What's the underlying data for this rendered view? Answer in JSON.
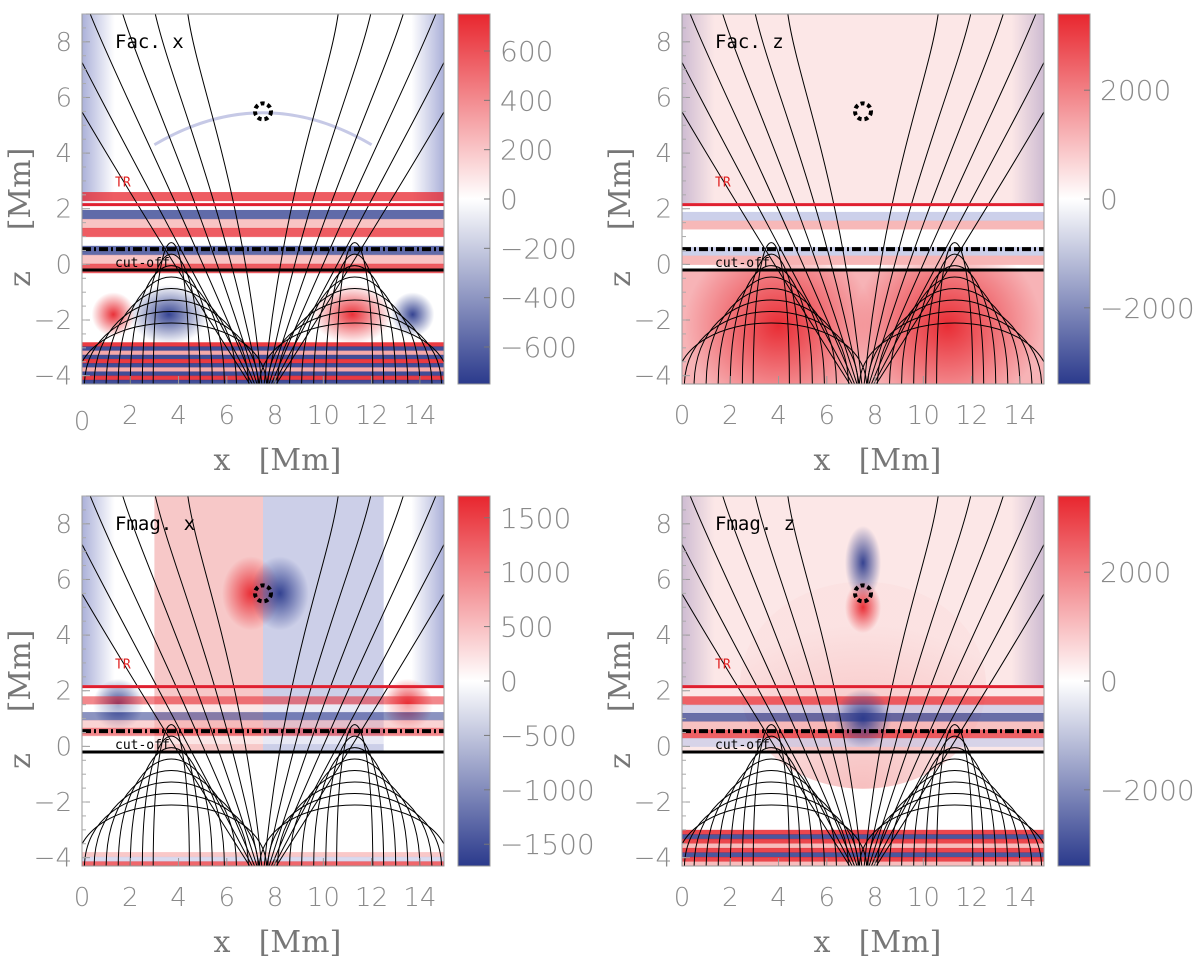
{
  "colors": {
    "red": "#e8262e",
    "blue": "#2b3a8c",
    "white": "#ffffff"
  },
  "annotations": {
    "tr_label": "TR",
    "cutoff_label": "cut-off"
  },
  "chart_data": [
    {
      "type": "heatmap",
      "title": "Fac. x",
      "xlabel": "x [Mm]",
      "ylabel": "z [Mm]",
      "xlim": [
        0,
        15
      ],
      "ylim": [
        -4.3,
        9
      ],
      "xticks": [
        "0",
        "2",
        "4",
        "6",
        "8",
        "10",
        "12",
        "14"
      ],
      "yticks": [
        "−4",
        "−2",
        "0",
        "2",
        "4",
        "6",
        "8"
      ],
      "colorbar": {
        "range": [
          -750,
          750
        ],
        "ticks": [
          "600",
          "400",
          "200",
          "0",
          "−200",
          "−400",
          "−600"
        ]
      },
      "tr_height": 2.15,
      "cutoff_height": -0.2,
      "dashed_height": 0.55,
      "marker": [
        7.5,
        5.5
      ]
    },
    {
      "type": "heatmap",
      "title": "Fac. z",
      "xlabel": "x [Mm]",
      "ylabel": "z [Mm]",
      "xlim": [
        0,
        15
      ],
      "ylim": [
        -4.3,
        9
      ],
      "xticks": [
        "0",
        "2",
        "4",
        "6",
        "8",
        "10",
        "12",
        "14"
      ],
      "yticks": [
        "−4",
        "−2",
        "0",
        "2",
        "4",
        "6",
        "8"
      ],
      "colorbar": {
        "range": [
          -3400,
          3400
        ],
        "ticks": [
          "2000",
          "0",
          "−2000"
        ]
      },
      "tr_height": 2.15,
      "cutoff_height": -0.2,
      "dashed_height": 0.55,
      "marker": [
        7.5,
        5.5
      ]
    },
    {
      "type": "heatmap",
      "title": "Fmag. x",
      "xlabel": "x [Mm]",
      "ylabel": "z [Mm]",
      "xlim": [
        0,
        15
      ],
      "ylim": [
        -4.3,
        9
      ],
      "xticks": [
        "0",
        "2",
        "4",
        "6",
        "8",
        "10",
        "12",
        "14"
      ],
      "yticks": [
        "−4",
        "−2",
        "0",
        "2",
        "4",
        "6",
        "8"
      ],
      "colorbar": {
        "range": [
          -1700,
          1700
        ],
        "ticks": [
          "1500",
          "1000",
          "500",
          "0",
          "−500",
          "−1000",
          "−1500"
        ]
      },
      "tr_height": 2.15,
      "cutoff_height": -0.2,
      "dashed_height": 0.55,
      "marker": [
        7.5,
        5.5
      ]
    },
    {
      "type": "heatmap",
      "title": "Fmag. z",
      "xlabel": "x [Mm]",
      "ylabel": "z [Mm]",
      "xlim": [
        0,
        15
      ],
      "ylim": [
        -4.3,
        9
      ],
      "xticks": [
        "0",
        "2",
        "4",
        "6",
        "8",
        "10",
        "12",
        "14"
      ],
      "yticks": [
        "−4",
        "−2",
        "0",
        "2",
        "4",
        "6",
        "8"
      ],
      "colorbar": {
        "range": [
          -3400,
          3400
        ],
        "ticks": [
          "2000",
          "0",
          "−2000"
        ]
      },
      "tr_height": 2.15,
      "cutoff_height": -0.2,
      "dashed_height": 0.55,
      "marker": [
        7.5,
        5.5
      ]
    }
  ]
}
